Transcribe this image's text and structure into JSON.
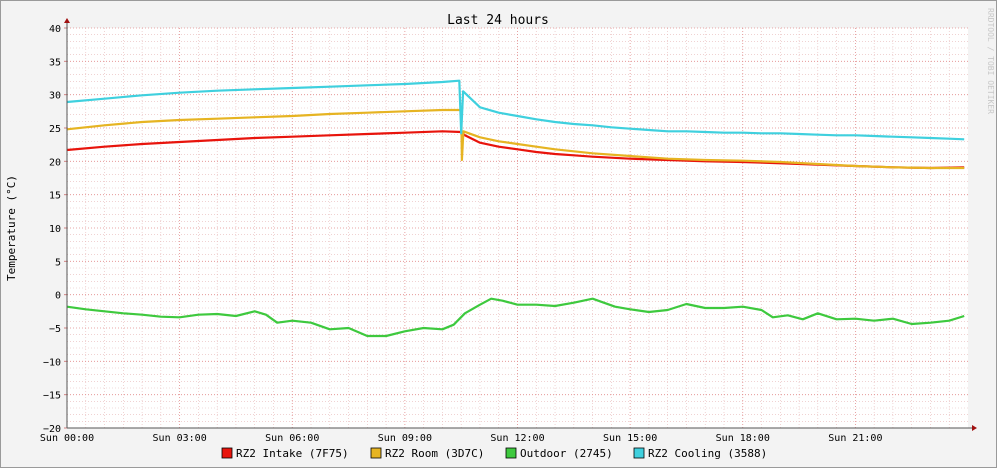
{
  "chart_data": {
    "type": "line",
    "title": "Last 24 hours",
    "ylabel": "Temperature (°C)",
    "xlabel": "",
    "watermark": "RRDTOOL / TOBI OETIKER",
    "ylim": [
      -20,
      40
    ],
    "xlim": [
      0,
      24
    ],
    "y_ticks": [
      {
        "value": 40,
        "label": "40"
      },
      {
        "value": 35,
        "label": "35"
      },
      {
        "value": 30,
        "label": "30"
      },
      {
        "value": 25,
        "label": "25"
      },
      {
        "value": 20,
        "label": "20"
      },
      {
        "value": 15,
        "label": "15"
      },
      {
        "value": 10,
        "label": "10"
      },
      {
        "value": 5,
        "label": "5"
      },
      {
        "value": 0,
        "label": "0"
      },
      {
        "value": -5,
        "label": "−5"
      },
      {
        "value": -10,
        "label": "−10"
      },
      {
        "value": -15,
        "label": "−15"
      },
      {
        "value": -20,
        "label": "−20"
      }
    ],
    "x_ticks": [
      {
        "value": 0,
        "label": "Sun 00:00"
      },
      {
        "value": 3,
        "label": "Sun 03:00"
      },
      {
        "value": 6,
        "label": "Sun 06:00"
      },
      {
        "value": 9,
        "label": "Sun 09:00"
      },
      {
        "value": 12,
        "label": "Sun 12:00"
      },
      {
        "value": 15,
        "label": "Sun 15:00"
      },
      {
        "value": 18,
        "label": "Sun 18:00"
      },
      {
        "value": 21,
        "label": "Sun 21:00"
      }
    ],
    "grid": true,
    "legend_position": "bottom",
    "series": [
      {
        "name": "RZ2 Intake (7F75)",
        "color": "#e8140c",
        "points": [
          [
            0,
            21.7
          ],
          [
            1,
            22.2
          ],
          [
            2,
            22.6
          ],
          [
            3,
            22.9
          ],
          [
            4,
            23.2
          ],
          [
            5,
            23.5
          ],
          [
            6,
            23.7
          ],
          [
            7,
            23.9
          ],
          [
            8,
            24.1
          ],
          [
            9,
            24.3
          ],
          [
            10,
            24.5
          ],
          [
            10.5,
            24.4
          ],
          [
            10.6,
            23.9
          ],
          [
            11,
            22.8
          ],
          [
            11.5,
            22.2
          ],
          [
            12,
            21.8
          ],
          [
            12.5,
            21.4
          ],
          [
            13,
            21.1
          ],
          [
            13.5,
            20.9
          ],
          [
            14,
            20.7
          ],
          [
            15,
            20.4
          ],
          [
            16,
            20.2
          ],
          [
            17,
            20.0
          ],
          [
            18,
            19.9
          ],
          [
            19,
            19.7
          ],
          [
            20,
            19.5
          ],
          [
            21,
            19.3
          ],
          [
            22,
            19.1
          ],
          [
            23,
            19.0
          ],
          [
            23.9,
            19.1
          ]
        ]
      },
      {
        "name": "RZ2 Room (3D7C)",
        "color": "#e6b422",
        "points": [
          [
            0,
            24.8
          ],
          [
            1,
            25.4
          ],
          [
            2,
            25.9
          ],
          [
            3,
            26.2
          ],
          [
            4,
            26.4
          ],
          [
            5,
            26.6
          ],
          [
            6,
            26.8
          ],
          [
            7,
            27.1
          ],
          [
            8,
            27.3
          ],
          [
            9,
            27.5
          ],
          [
            10,
            27.7
          ],
          [
            10.5,
            27.7
          ],
          [
            10.52,
            20.2
          ],
          [
            10.56,
            24.5
          ],
          [
            11,
            23.6
          ],
          [
            11.5,
            23.0
          ],
          [
            12,
            22.6
          ],
          [
            12.5,
            22.2
          ],
          [
            13,
            21.8
          ],
          [
            13.5,
            21.5
          ],
          [
            14,
            21.2
          ],
          [
            15,
            20.8
          ],
          [
            16,
            20.4
          ],
          [
            17,
            20.2
          ],
          [
            18,
            20.1
          ],
          [
            19,
            19.9
          ],
          [
            20,
            19.6
          ],
          [
            21,
            19.3
          ],
          [
            22,
            19.1
          ],
          [
            23,
            19.0
          ],
          [
            23.9,
            19.0
          ]
        ]
      },
      {
        "name": "Outdoor (2745)",
        "color": "#3ec93e",
        "points": [
          [
            0,
            -1.8
          ],
          [
            0.5,
            -2.2
          ],
          [
            1,
            -2.5
          ],
          [
            1.5,
            -2.8
          ],
          [
            2,
            -3.0
          ],
          [
            2.5,
            -3.3
          ],
          [
            3,
            -3.4
          ],
          [
            3.5,
            -3.0
          ],
          [
            4,
            -2.9
          ],
          [
            4.5,
            -3.2
          ],
          [
            5,
            -2.5
          ],
          [
            5.3,
            -3.0
          ],
          [
            5.6,
            -4.2
          ],
          [
            6,
            -3.9
          ],
          [
            6.5,
            -4.2
          ],
          [
            7,
            -5.2
          ],
          [
            7.5,
            -5.0
          ],
          [
            8,
            -6.2
          ],
          [
            8.5,
            -6.2
          ],
          [
            9,
            -5.5
          ],
          [
            9.5,
            -5.0
          ],
          [
            10,
            -5.2
          ],
          [
            10.3,
            -4.5
          ],
          [
            10.6,
            -2.8
          ],
          [
            11,
            -1.5
          ],
          [
            11.3,
            -0.6
          ],
          [
            11.6,
            -0.9
          ],
          [
            12,
            -1.5
          ],
          [
            12.5,
            -1.5
          ],
          [
            13,
            -1.7
          ],
          [
            13.5,
            -1.2
          ],
          [
            14,
            -0.6
          ],
          [
            14.3,
            -1.2
          ],
          [
            14.6,
            -1.8
          ],
          [
            15,
            -2.2
          ],
          [
            15.5,
            -2.6
          ],
          [
            16,
            -2.3
          ],
          [
            16.5,
            -1.4
          ],
          [
            17,
            -2.0
          ],
          [
            17.5,
            -2.0
          ],
          [
            18,
            -1.8
          ],
          [
            18.5,
            -2.3
          ],
          [
            18.8,
            -3.4
          ],
          [
            19.2,
            -3.1
          ],
          [
            19.6,
            -3.7
          ],
          [
            20,
            -2.8
          ],
          [
            20.5,
            -3.7
          ],
          [
            21,
            -3.6
          ],
          [
            21.5,
            -3.9
          ],
          [
            22,
            -3.6
          ],
          [
            22.5,
            -4.4
          ],
          [
            23,
            -4.2
          ],
          [
            23.5,
            -3.9
          ],
          [
            23.9,
            -3.2
          ]
        ]
      },
      {
        "name": "RZ2 Cooling (3588)",
        "color": "#3fd0de",
        "points": [
          [
            0,
            28.9
          ],
          [
            1,
            29.4
          ],
          [
            2,
            29.9
          ],
          [
            3,
            30.3
          ],
          [
            4,
            30.6
          ],
          [
            5,
            30.8
          ],
          [
            6,
            31.0
          ],
          [
            7,
            31.2
          ],
          [
            8,
            31.4
          ],
          [
            9,
            31.6
          ],
          [
            10,
            31.9
          ],
          [
            10.45,
            32.1
          ],
          [
            10.5,
            24.2
          ],
          [
            10.55,
            30.5
          ],
          [
            11,
            28.1
          ],
          [
            11.5,
            27.3
          ],
          [
            12,
            26.8
          ],
          [
            12.5,
            26.3
          ],
          [
            13,
            25.9
          ],
          [
            13.5,
            25.6
          ],
          [
            14,
            25.4
          ],
          [
            14.5,
            25.1
          ],
          [
            15,
            24.9
          ],
          [
            15.5,
            24.7
          ],
          [
            16,
            24.5
          ],
          [
            16.5,
            24.5
          ],
          [
            17,
            24.4
          ],
          [
            17.5,
            24.3
          ],
          [
            18,
            24.3
          ],
          [
            18.5,
            24.2
          ],
          [
            19,
            24.2
          ],
          [
            19.5,
            24.1
          ],
          [
            20,
            24.0
          ],
          [
            20.5,
            23.9
          ],
          [
            21,
            23.9
          ],
          [
            21.5,
            23.8
          ],
          [
            22,
            23.7
          ],
          [
            22.5,
            23.6
          ],
          [
            23,
            23.5
          ],
          [
            23.5,
            23.4
          ],
          [
            23.9,
            23.3
          ]
        ]
      }
    ]
  }
}
